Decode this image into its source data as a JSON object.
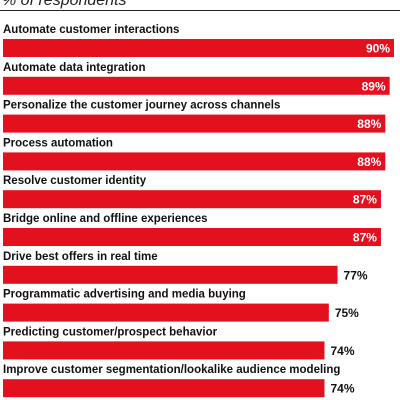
{
  "header": {
    "subtitle": "% of respondents"
  },
  "colors": {
    "bar": "#e3101e",
    "text": "#111111",
    "label_inside": "#ffffff"
  },
  "chart_data": {
    "type": "bar",
    "orientation": "horizontal",
    "subtitle": "% of respondents",
    "categories": [
      "Automate customer interactions",
      "Automate data integration",
      "Personalize the customer journey across channels",
      "Process automation",
      "Resolve customer identity",
      "Bridge online and offline experiences",
      "Drive best offers in real time",
      "Programmatic advertising and media buying",
      "Predicting customer/prospect behavior",
      "Improve customer segmentation/lookalike audience modeling"
    ],
    "values": [
      90,
      89,
      88,
      88,
      87,
      87,
      77,
      75,
      74,
      74
    ],
    "value_labels": [
      "90%",
      "89%",
      "88%",
      "88%",
      "87%",
      "87%",
      "77%",
      "75%",
      "74%",
      "74%"
    ],
    "xlim": [
      0,
      90
    ],
    "grid": false,
    "legend": "none"
  }
}
